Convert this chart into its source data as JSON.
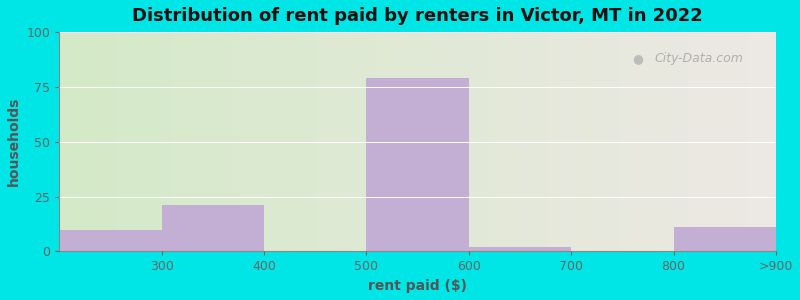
{
  "title": "Distribution of rent paid by renters in Victor, MT in 2022",
  "xlabel": "rent paid ($)",
  "ylabel": "households",
  "tick_labels": [
    "300",
    "400",
    "500",
    "600",
    "700",
    "800",
    ">900"
  ],
  "tick_positions": [
    100,
    200,
    300,
    400,
    500,
    600,
    700
  ],
  "bar_lefts": [
    0,
    100,
    200,
    300,
    400,
    500,
    600
  ],
  "bar_rights": [
    100,
    200,
    300,
    400,
    500,
    600,
    700
  ],
  "bar_values": [
    10,
    21,
    0,
    79,
    2,
    0,
    11
  ],
  "bar_color": "#c4afd4",
  "ylim": [
    0,
    100
  ],
  "yticks": [
    0,
    25,
    50,
    75,
    100
  ],
  "bg_color_left": "#d4eac8",
  "bg_color_right": "#ede8e4",
  "title_fontsize": 13,
  "axis_label_fontsize": 10,
  "tick_fontsize": 9,
  "figure_facecolor": "#00e5e5",
  "watermark": "City-Data.com"
}
